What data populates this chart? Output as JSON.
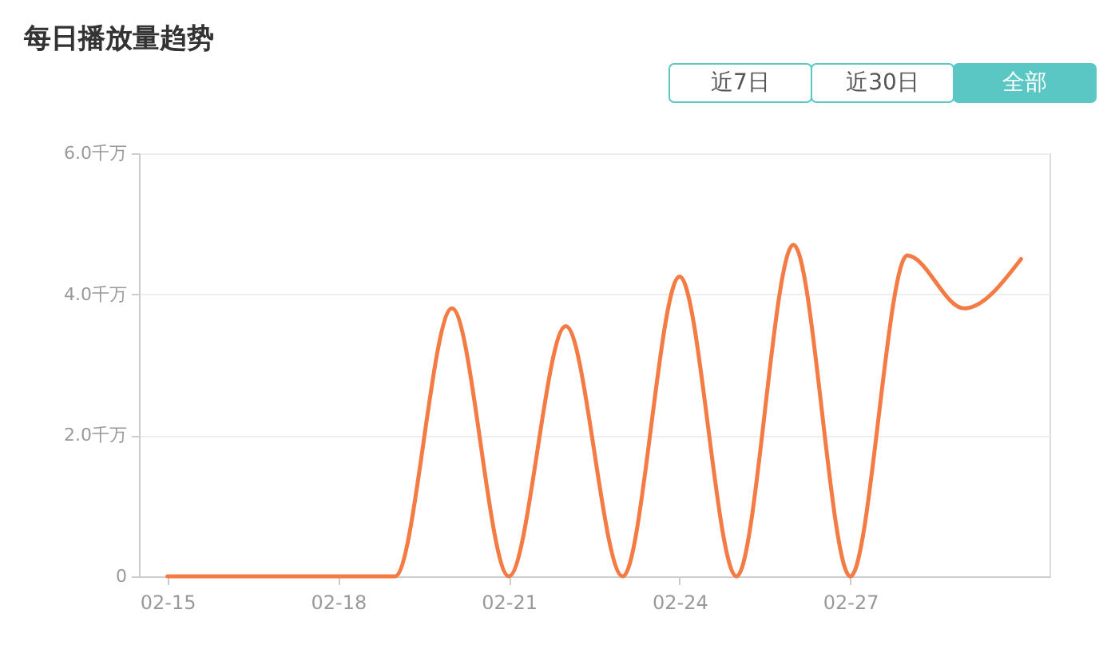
{
  "chart_data": {
    "type": "line",
    "title": "每日播放量趋势",
    "annotations": [
      "近7日",
      "近30日",
      "全部"
    ],
    "categories": [
      "02-15",
      null,
      null,
      "02-18",
      null,
      null,
      "02-21",
      null,
      null,
      "02-24",
      null,
      null,
      "02-27",
      null,
      null,
      null
    ],
    "series": [
      {
        "color": "#f47b44",
        "values": [
          0,
          0,
          0,
          0,
          0,
          3.8,
          0,
          3.55,
          0,
          4.25,
          0,
          4.7,
          0,
          4.55,
          3.8,
          4.5
        ]
      }
    ],
    "ylim": [
      0,
      6
    ],
    "yticks": [
      0,
      {
        "value": 2,
        "label": "2.0千万"
      },
      {
        "value": 4,
        "label": "4.0千万"
      },
      {
        "value": 6,
        "label": "6.0千万"
      }
    ],
    "grid": "y"
  }
}
